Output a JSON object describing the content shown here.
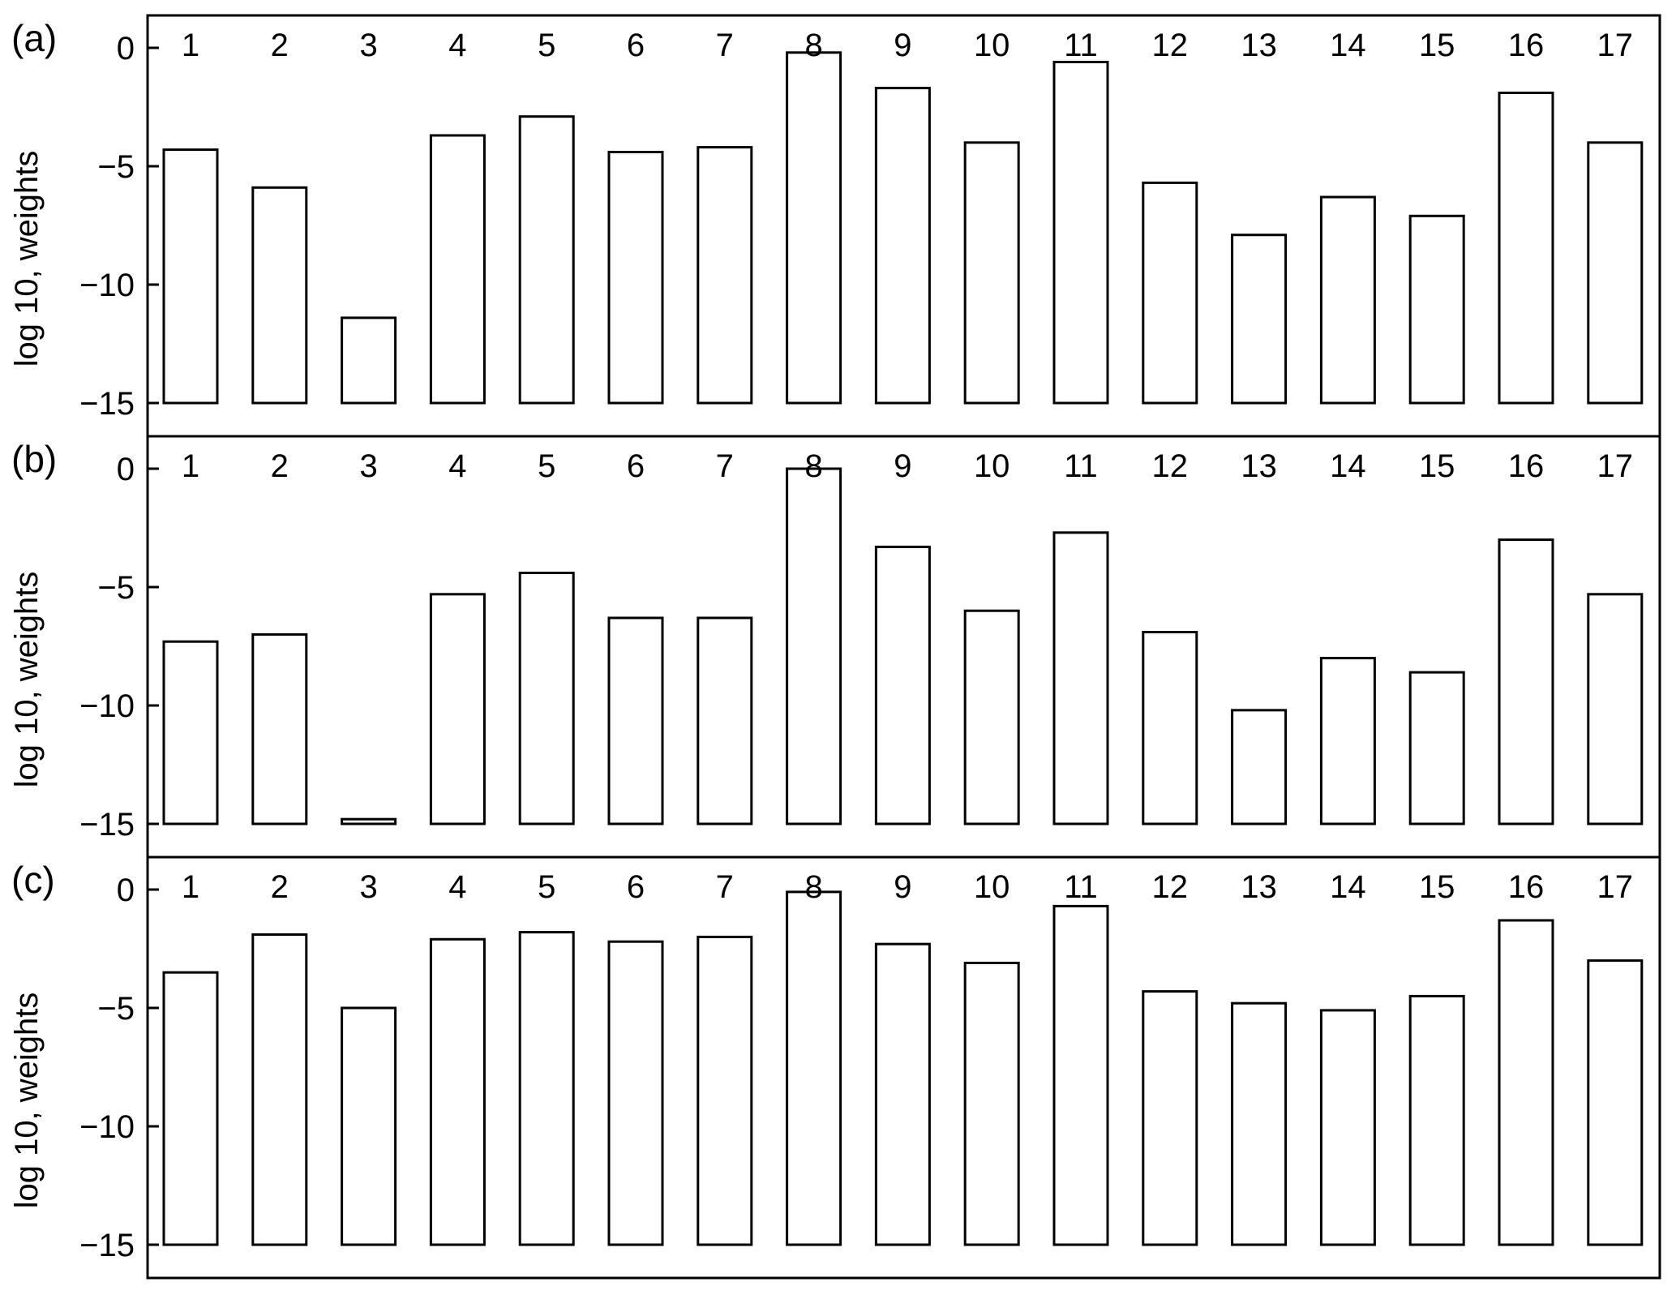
{
  "chart_data": [
    {
      "type": "bar",
      "panel_label": "(a)",
      "ylabel": "log 10, weights",
      "categories": [
        "1",
        "2",
        "3",
        "4",
        "5",
        "6",
        "7",
        "8",
        "9",
        "10",
        "11",
        "12",
        "13",
        "14",
        "15",
        "16",
        "17"
      ],
      "values": [
        -4.3,
        -5.9,
        -11.4,
        -3.7,
        -2.9,
        -4.4,
        -4.2,
        -0.2,
        -1.7,
        -4.0,
        -0.6,
        -5.7,
        -7.9,
        -6.3,
        -7.1,
        -1.9,
        -4.0
      ],
      "baseline": -15,
      "yticks": [
        0,
        -5,
        -10,
        -15
      ],
      "ytick_labels": [
        "0",
        "−5",
        "−10",
        "−15"
      ],
      "ylim": [
        -16.4,
        1.4
      ],
      "grid": false
    },
    {
      "type": "bar",
      "panel_label": "(b)",
      "ylabel": "log 10, weights",
      "categories": [
        "1",
        "2",
        "3",
        "4",
        "5",
        "6",
        "7",
        "8",
        "9",
        "10",
        "11",
        "12",
        "13",
        "14",
        "15",
        "16",
        "17"
      ],
      "values": [
        -7.3,
        -7.0,
        -14.8,
        -5.3,
        -4.4,
        -6.3,
        -6.3,
        0.0,
        -3.3,
        -6.0,
        -2.7,
        -6.9,
        -10.2,
        -8.0,
        -8.6,
        -3.0,
        -5.3
      ],
      "baseline": -15,
      "yticks": [
        0,
        -5,
        -10,
        -15
      ],
      "ytick_labels": [
        "0",
        "−5",
        "−10",
        "−15"
      ],
      "ylim": [
        -16.4,
        1.4
      ],
      "grid": false
    },
    {
      "type": "bar",
      "panel_label": "(c)",
      "ylabel": "log 10, weights",
      "categories": [
        "1",
        "2",
        "3",
        "4",
        "5",
        "6",
        "7",
        "8",
        "9",
        "10",
        "11",
        "12",
        "13",
        "14",
        "15",
        "16",
        "17"
      ],
      "values": [
        -3.5,
        -1.9,
        -5.0,
        -2.1,
        -1.8,
        -2.2,
        -2.0,
        -0.1,
        -2.3,
        -3.1,
        -0.7,
        -4.3,
        -4.8,
        -5.1,
        -4.5,
        -1.3,
        -3.0
      ],
      "baseline": -15,
      "yticks": [
        0,
        -5,
        -10,
        -15
      ],
      "ytick_labels": [
        "0",
        "−5",
        "−10",
        "−15"
      ],
      "ylim": [
        -16.4,
        1.4
      ],
      "grid": false
    }
  ],
  "colors": {
    "bar_fill": "#ffffff",
    "stroke": "#000000"
  }
}
